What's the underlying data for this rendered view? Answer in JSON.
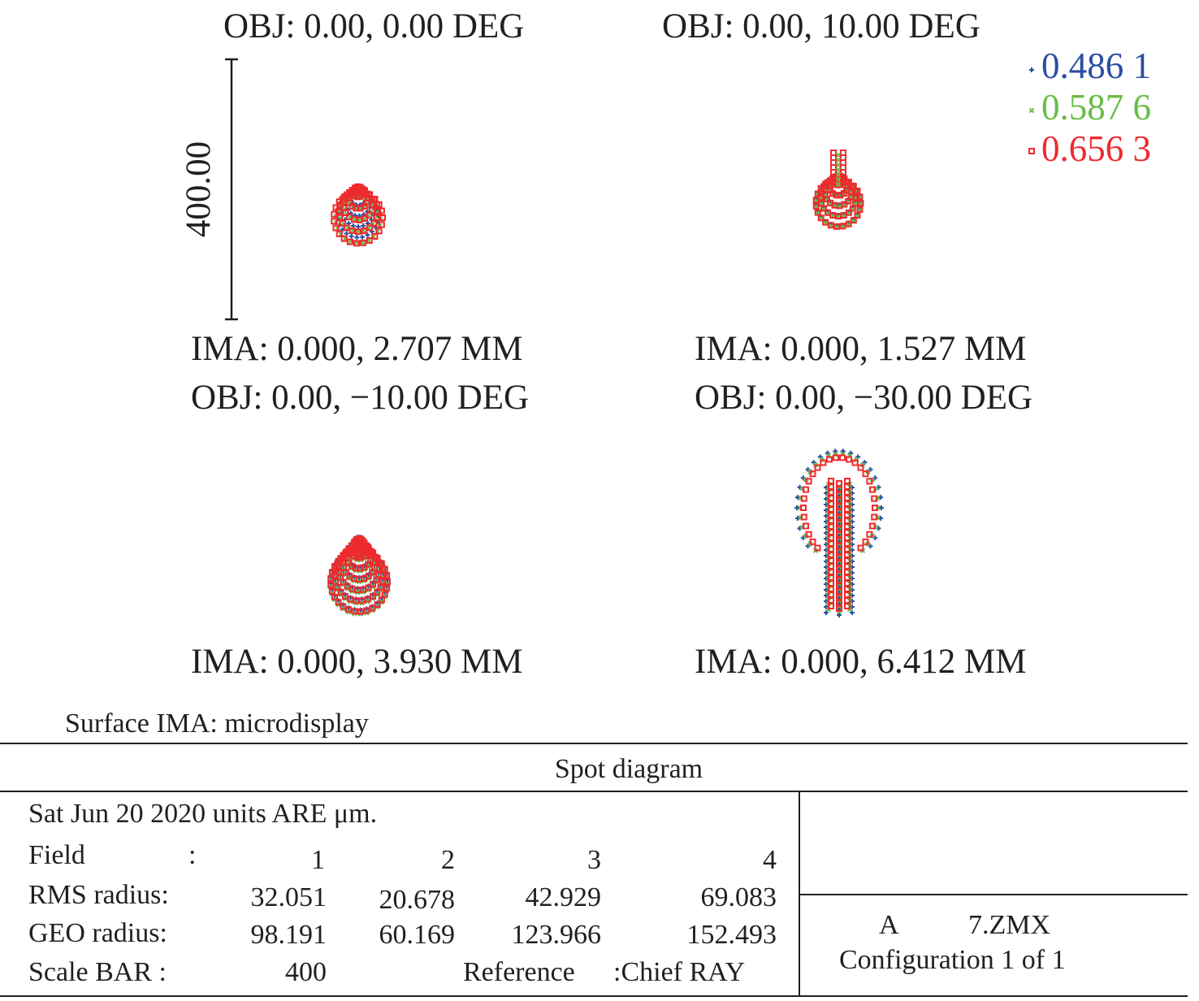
{
  "chart_data": {
    "type": "scatter",
    "title": "Spot diagram",
    "wavelengths": [
      {
        "label": "0.486 1",
        "color": "#2b4ea2",
        "marker": "plus"
      },
      {
        "label": "0.587 6",
        "color": "#67bd45",
        "marker": "x"
      },
      {
        "label": "0.656 3",
        "color": "#ee2a2e",
        "marker": "square"
      }
    ],
    "scale_bar_label": "400.00",
    "fields": [
      {
        "obj": "OBJ: 0.00, 0.00 DEG",
        "ima": "IMA: 0.000, 2.707 MM",
        "rms": 32.051,
        "geo": 98.191
      },
      {
        "obj": "OBJ: 0.00, 10.00 DEG",
        "ima": "IMA: 0.000, 1.527 MM",
        "rms": 20.678,
        "geo": 60.169
      },
      {
        "obj": "OBJ: 0.00, −10.00 DEG",
        "ima": "IMA: 0.000, 3.930 MM",
        "rms": 42.929,
        "geo": 123.966
      },
      {
        "obj": "OBJ: 0.00, −30.00 DEG",
        "ima": "IMA: 0.000, 6.412 MM",
        "rms": 69.083,
        "geo": 152.493
      }
    ]
  },
  "surface": "Surface IMA: microdisplay",
  "table": {
    "title": "Spot diagram",
    "date_line": "Sat Jun 20 2020 units ARE μm.",
    "field_label": "Field",
    "colon": ":",
    "field_numbers": [
      "1",
      "2",
      "3",
      "4"
    ],
    "rms_label": "RMS radius:",
    "rms_values": [
      "32.051",
      "20.678",
      "42.929",
      "69.083"
    ],
    "geo_label": "GEO radius:",
    "geo_values": [
      "98.191",
      "60.169",
      "123.966",
      "152.493"
    ],
    "scale_label": "Scale BAR :",
    "scale_value": "400",
    "reference_label": "Reference",
    "reference_value": ":Chief RAY",
    "file_a": "A",
    "file_name": "7.ZMX",
    "configuration": "Configuration 1 of 1"
  }
}
